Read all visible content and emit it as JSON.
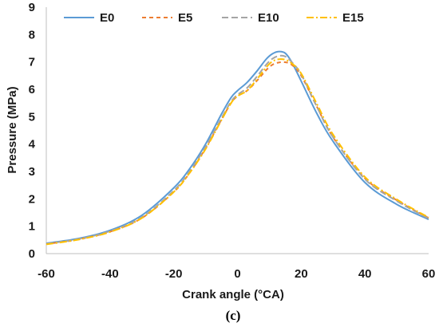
{
  "chart_data": {
    "type": "line",
    "xlabel": "Crank angle (°CA)",
    "ylabel": "Pressure (MPa)",
    "xlim": [
      -60,
      60
    ],
    "ylim": [
      0,
      9
    ],
    "xticks": [
      -60,
      -40,
      -20,
      0,
      20,
      40,
      60
    ],
    "yticks": [
      0,
      1,
      2,
      3,
      4,
      5,
      6,
      7,
      8,
      9
    ],
    "grid": false,
    "legend_position": "top",
    "series": [
      {
        "name": "E0",
        "color": "#5b9bd5",
        "dash": "solid",
        "x": [
          -60,
          -50,
          -40,
          -30,
          -20,
          -15,
          -10,
          -5,
          -2,
          0,
          3,
          6,
          9,
          11,
          13,
          15,
          17,
          20,
          25,
          30,
          40,
          50,
          60
        ],
        "y": [
          0.38,
          0.55,
          0.85,
          1.4,
          2.4,
          3.1,
          4.0,
          5.1,
          5.7,
          5.95,
          6.25,
          6.65,
          7.1,
          7.3,
          7.38,
          7.32,
          7.0,
          6.3,
          5.1,
          4.1,
          2.6,
          1.8,
          1.25
        ]
      },
      {
        "name": "E5",
        "color": "#ed7d31",
        "dash": "5,4",
        "x": [
          -60,
          -50,
          -40,
          -30,
          -20,
          -15,
          -10,
          -5,
          -2,
          0,
          3,
          6,
          9,
          11,
          13,
          15,
          17,
          20,
          25,
          30,
          40,
          50,
          60
        ],
        "y": [
          0.35,
          0.52,
          0.8,
          1.3,
          2.25,
          2.95,
          3.85,
          4.9,
          5.5,
          5.75,
          5.95,
          6.3,
          6.7,
          6.9,
          6.98,
          6.99,
          6.9,
          6.5,
          5.35,
          4.25,
          2.75,
          1.95,
          1.3
        ]
      },
      {
        "name": "E10",
        "color": "#a5a5a5",
        "dash": "8,4",
        "x": [
          -60,
          -50,
          -40,
          -30,
          -20,
          -15,
          -10,
          -5,
          -2,
          0,
          3,
          6,
          9,
          11,
          13,
          15,
          17,
          20,
          25,
          30,
          40,
          50,
          60
        ],
        "y": [
          0.36,
          0.53,
          0.82,
          1.33,
          2.3,
          3.0,
          3.9,
          4.95,
          5.55,
          5.8,
          6.05,
          6.45,
          6.9,
          7.12,
          7.22,
          7.2,
          7.0,
          6.55,
          5.35,
          4.25,
          2.72,
          1.92,
          1.28
        ]
      },
      {
        "name": "E15",
        "color": "#ffc000",
        "dash": "9,3,2,3",
        "x": [
          -60,
          -50,
          -40,
          -30,
          -20,
          -15,
          -10,
          -5,
          -2,
          0,
          3,
          6,
          9,
          11,
          13,
          15,
          17,
          20,
          25,
          30,
          40,
          50,
          60
        ],
        "y": [
          0.34,
          0.51,
          0.79,
          1.3,
          2.25,
          2.95,
          3.82,
          4.88,
          5.5,
          5.75,
          5.95,
          6.35,
          6.8,
          7.02,
          7.1,
          7.08,
          6.95,
          6.58,
          5.45,
          4.35,
          2.8,
          1.98,
          1.32
        ]
      }
    ]
  },
  "caption": "(c)"
}
